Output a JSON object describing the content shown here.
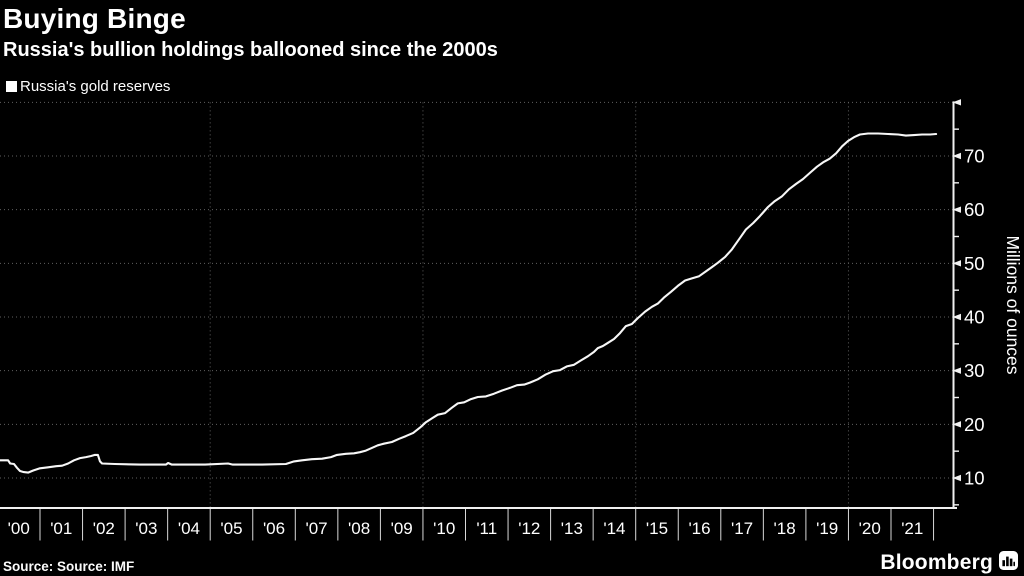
{
  "header": {
    "title": "Buying Binge",
    "subtitle": "Russia's bullion holdings ballooned since the 2000s"
  },
  "legend": {
    "marker_color": "#ffffff",
    "label": "Russia's gold reserves"
  },
  "footer": {
    "source": "Source: Source: IMF",
    "brand": "Bloomberg"
  },
  "colors": {
    "background": "#000000",
    "text": "#ffffff",
    "line": "#f7f7f7",
    "grid": "#606060",
    "axis": "#f0f0f0",
    "x_tick": "#d9d9d9"
  },
  "chart_data": {
    "type": "line",
    "title": "Buying Binge",
    "subtitle": "Russia's bullion holdings ballooned since the 2000s",
    "xlabel": "",
    "ylabel": "Millions of ounces",
    "legend_position": "top-left",
    "grid": "dotted",
    "x_axis": {
      "labels": [
        "'00",
        "'01",
        "'02",
        "'03",
        "'04",
        "'05",
        "'06",
        "'07",
        "'08",
        "'09",
        "'10",
        "'11",
        "'12",
        "'13",
        "'14",
        "'15",
        "'16",
        "'17",
        "'18",
        "'19",
        "'20",
        "'21"
      ],
      "tick_years": [
        2001,
        2002,
        2003,
        2004,
        2005,
        2006,
        2007,
        2008,
        2009,
        2010,
        2011,
        2012,
        2013,
        2014,
        2015,
        2016,
        2017,
        2018,
        2019,
        2020,
        2021,
        2022
      ],
      "grid_years": [
        2005,
        2010,
        2015,
        2020
      ],
      "range": [
        2000.05,
        2022.45
      ]
    },
    "y_axis": {
      "major_ticks": [
        10,
        20,
        30,
        40,
        50,
        60,
        70
      ],
      "minor_ticks": [
        5,
        15,
        25,
        35,
        45,
        55,
        65,
        75
      ],
      "grid_values": [
        10,
        20,
        30,
        40,
        50,
        60,
        70,
        80
      ],
      "range": [
        4.4,
        80.2
      ]
    },
    "series": [
      {
        "name": "Russia's gold reserves",
        "color": "#f7f7f7",
        "points": [
          [
            2000.06,
            13.3
          ],
          [
            2000.25,
            13.3
          ],
          [
            2000.3,
            12.7
          ],
          [
            2000.39,
            12.6
          ],
          [
            2000.46,
            11.9
          ],
          [
            2000.53,
            11.3
          ],
          [
            2000.62,
            11.1
          ],
          [
            2000.72,
            11.0
          ],
          [
            2000.84,
            11.4
          ],
          [
            2001.0,
            11.8
          ],
          [
            2001.19,
            12.0
          ],
          [
            2001.38,
            12.2
          ],
          [
            2001.52,
            12.3
          ],
          [
            2001.66,
            12.7
          ],
          [
            2001.8,
            13.3
          ],
          [
            2001.94,
            13.7
          ],
          [
            2002.08,
            13.9
          ],
          [
            2002.2,
            14.1
          ],
          [
            2002.29,
            14.3
          ],
          [
            2002.36,
            14.3
          ],
          [
            2002.41,
            13.1
          ],
          [
            2002.46,
            12.7
          ],
          [
            2002.76,
            12.6
          ],
          [
            2003.35,
            12.5
          ],
          [
            2003.96,
            12.5
          ],
          [
            2004.01,
            12.8
          ],
          [
            2004.1,
            12.5
          ],
          [
            2004.88,
            12.5
          ],
          [
            2005.42,
            12.7
          ],
          [
            2005.53,
            12.5
          ],
          [
            2006.22,
            12.5
          ],
          [
            2006.78,
            12.6
          ],
          [
            2006.97,
            13.1
          ],
          [
            2007.16,
            13.3
          ],
          [
            2007.39,
            13.5
          ],
          [
            2007.63,
            13.6
          ],
          [
            2007.84,
            13.9
          ],
          [
            2007.98,
            14.3
          ],
          [
            2008.19,
            14.5
          ],
          [
            2008.38,
            14.6
          ],
          [
            2008.52,
            14.8
          ],
          [
            2008.66,
            15.1
          ],
          [
            2008.8,
            15.6
          ],
          [
            2008.94,
            16.1
          ],
          [
            2009.08,
            16.4
          ],
          [
            2009.27,
            16.7
          ],
          [
            2009.44,
            17.3
          ],
          [
            2009.6,
            17.8
          ],
          [
            2009.77,
            18.4
          ],
          [
            2009.93,
            19.4
          ],
          [
            2010.07,
            20.4
          ],
          [
            2010.21,
            21.1
          ],
          [
            2010.35,
            21.8
          ],
          [
            2010.52,
            22.1
          ],
          [
            2010.68,
            23.1
          ],
          [
            2010.82,
            23.9
          ],
          [
            2010.97,
            24.1
          ],
          [
            2011.13,
            24.7
          ],
          [
            2011.29,
            25.1
          ],
          [
            2011.48,
            25.2
          ],
          [
            2011.67,
            25.7
          ],
          [
            2011.86,
            26.3
          ],
          [
            2012.05,
            26.8
          ],
          [
            2012.21,
            27.3
          ],
          [
            2012.38,
            27.4
          ],
          [
            2012.52,
            27.8
          ],
          [
            2012.7,
            28.4
          ],
          [
            2012.89,
            29.3
          ],
          [
            2013.06,
            29.9
          ],
          [
            2013.22,
            30.1
          ],
          [
            2013.38,
            30.8
          ],
          [
            2013.55,
            31.1
          ],
          [
            2013.71,
            31.9
          ],
          [
            2013.88,
            32.7
          ],
          [
            2014.02,
            33.5
          ],
          [
            2014.11,
            34.2
          ],
          [
            2014.23,
            34.6
          ],
          [
            2014.35,
            35.2
          ],
          [
            2014.49,
            35.9
          ],
          [
            2014.63,
            37.0
          ],
          [
            2014.77,
            38.3
          ],
          [
            2014.91,
            38.7
          ],
          [
            2015.05,
            39.8
          ],
          [
            2015.22,
            41.0
          ],
          [
            2015.38,
            41.9
          ],
          [
            2015.52,
            42.5
          ],
          [
            2015.66,
            43.6
          ],
          [
            2015.83,
            44.7
          ],
          [
            2015.99,
            45.8
          ],
          [
            2016.16,
            46.8
          ],
          [
            2016.32,
            47.2
          ],
          [
            2016.49,
            47.6
          ],
          [
            2016.65,
            48.5
          ],
          [
            2016.79,
            49.3
          ],
          [
            2016.93,
            50.1
          ],
          [
            2017.1,
            51.2
          ],
          [
            2017.26,
            52.6
          ],
          [
            2017.43,
            54.5
          ],
          [
            2017.59,
            56.3
          ],
          [
            2017.76,
            57.5
          ],
          [
            2017.92,
            58.8
          ],
          [
            2018.11,
            60.5
          ],
          [
            2018.27,
            61.6
          ],
          [
            2018.44,
            62.5
          ],
          [
            2018.6,
            63.8
          ],
          [
            2018.77,
            64.8
          ],
          [
            2018.93,
            65.7
          ],
          [
            2019.1,
            66.9
          ],
          [
            2019.26,
            68.0
          ],
          [
            2019.42,
            68.9
          ],
          [
            2019.56,
            69.5
          ],
          [
            2019.71,
            70.5
          ],
          [
            2019.85,
            71.8
          ],
          [
            2019.99,
            72.8
          ],
          [
            2020.13,
            73.5
          ],
          [
            2020.27,
            74.0
          ],
          [
            2020.46,
            74.2
          ],
          [
            2020.7,
            74.2
          ],
          [
            2020.93,
            74.1
          ],
          [
            2021.17,
            74.0
          ],
          [
            2021.35,
            73.8
          ],
          [
            2021.54,
            73.9
          ],
          [
            2021.73,
            74.0
          ],
          [
            2021.92,
            74.0
          ],
          [
            2022.06,
            74.1
          ]
        ]
      }
    ]
  }
}
